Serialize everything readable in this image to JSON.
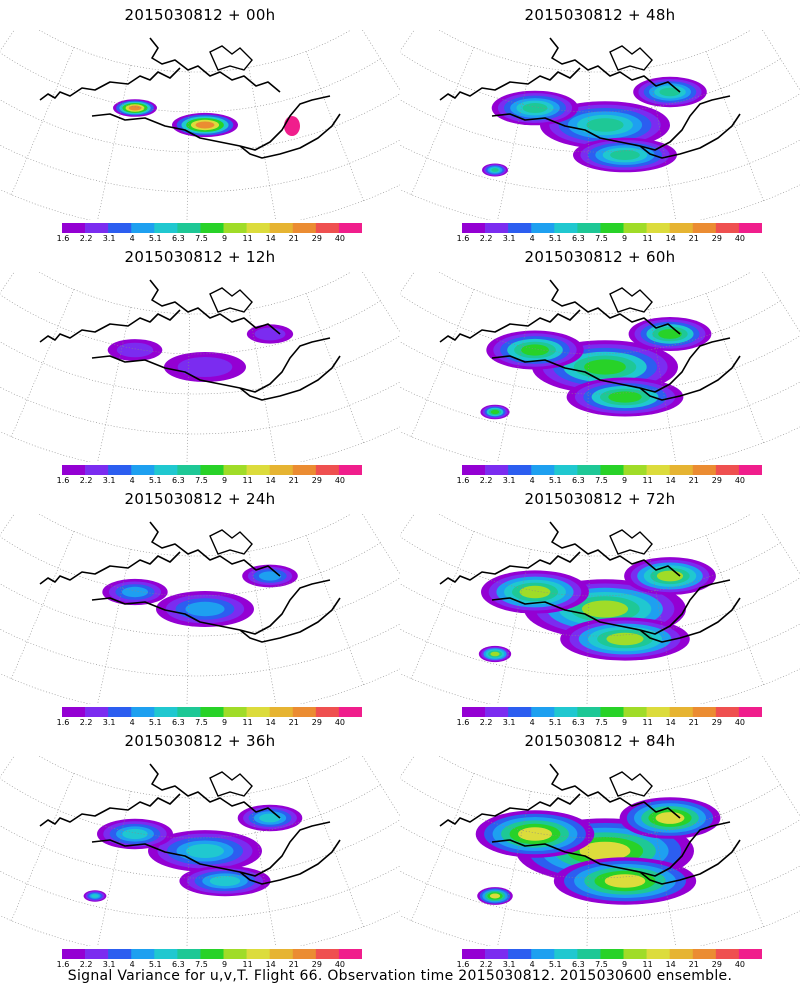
{
  "chart_data": {
    "type": "heatmap",
    "colorbar_ticks": [
      "1.6",
      "2.2",
      "3.1",
      "4",
      "5.1",
      "6.3",
      "7.5",
      "9",
      "11",
      "14",
      "21",
      "29",
      "40"
    ],
    "colorbar_colors": [
      "#9400d3",
      "#7b2cf0",
      "#2c5ef0",
      "#1ea0f0",
      "#20c8d0",
      "#1ec896",
      "#28d228",
      "#a0dc28",
      "#dcdc3c",
      "#e6b432",
      "#eb8c32",
      "#ef5050",
      "#f01e8c"
    ],
    "panels": [
      {
        "title": "2015030812 + 00h",
        "forecast_hour": 0,
        "max_level": 12
      },
      {
        "title": "2015030812 + 48h",
        "forecast_hour": 48,
        "max_level": 6
      },
      {
        "title": "2015030812 + 12h",
        "forecast_hour": 12,
        "max_level": 2
      },
      {
        "title": "2015030812 + 60h",
        "forecast_hour": 60,
        "max_level": 7
      },
      {
        "title": "2015030812 + 24h",
        "forecast_hour": 24,
        "max_level": 4
      },
      {
        "title": "2015030812 + 72h",
        "forecast_hour": 72,
        "max_level": 8
      },
      {
        "title": "2015030812 + 36h",
        "forecast_hour": 36,
        "max_level": 5
      },
      {
        "title": "2015030812 + 84h",
        "forecast_hour": 84,
        "max_level": 9
      }
    ]
  },
  "caption": "Signal Variance for u,v,T. Flight 66. Observation time 2015030812. 2015030600 ensemble."
}
